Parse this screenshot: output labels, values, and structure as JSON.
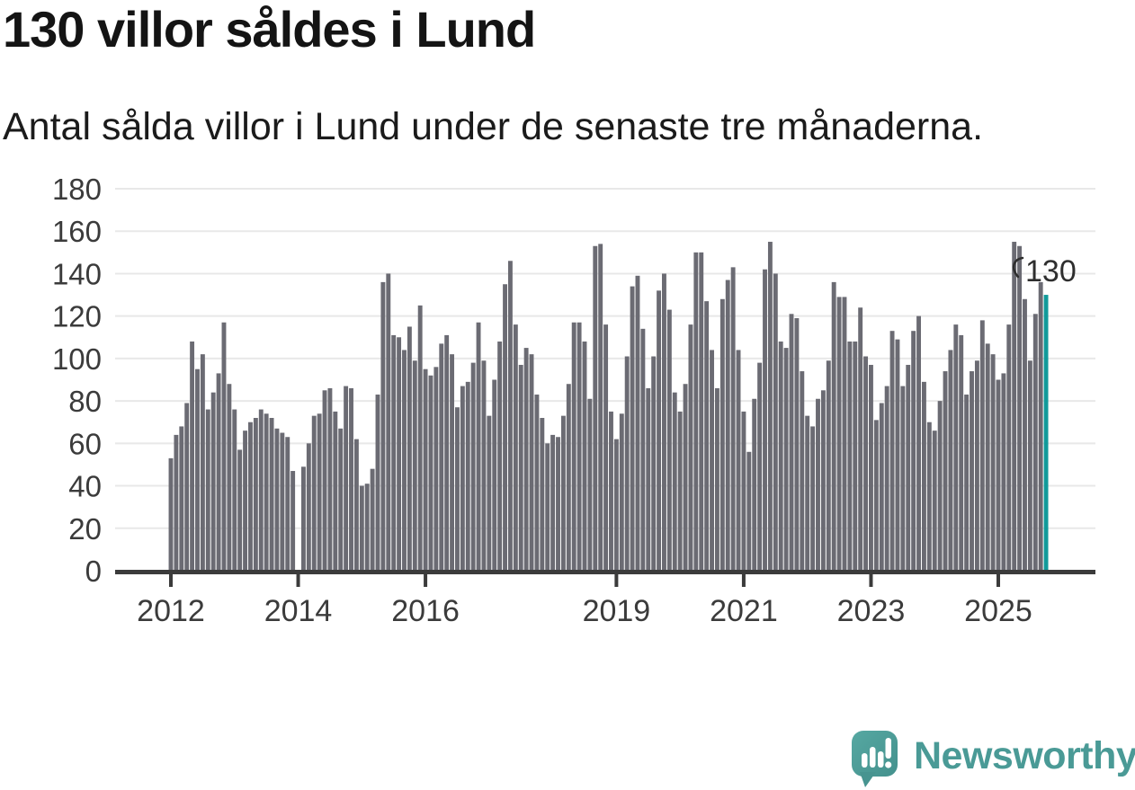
{
  "title": "130 villor såldes i Lund",
  "subtitle": "Antal sålda villor i Lund under de senaste tre månaderna.",
  "branding": {
    "name": "Newsworthy",
    "icon": "speech-bubble-bar-chart-exclamation"
  },
  "colors": {
    "bar": "#6b6b73",
    "highlight": "#119a9a",
    "grid": "#e8e8e8",
    "axis": "#3b3b3b",
    "title_text": "#141414",
    "annotation": "#2e2e2e",
    "brand": "#4a9a96"
  },
  "chart_data": {
    "type": "bar",
    "title": "130 villor såldes i Lund",
    "subtitle": "Antal sålda villor i Lund under de senaste tre månaderna.",
    "xlabel": "",
    "ylabel": "",
    "ylim": [
      0,
      180
    ],
    "y_ticks": [
      0,
      20,
      40,
      60,
      80,
      100,
      120,
      140,
      160,
      180
    ],
    "grid": true,
    "legend": "none",
    "start_year": 2012,
    "start_month": "2012-01",
    "end_month": "2025-10",
    "x_tick_years": [
      2012,
      2014,
      2016,
      2019,
      2021,
      2023,
      2025
    ],
    "x_tick_labels": [
      "2012",
      "2014",
      "2016",
      "2019",
      "2021",
      "2023",
      "2025"
    ],
    "note": "monthly bars, rolling three-month sales counts, values estimated from pixels",
    "highlight": {
      "index": 165,
      "label": "130",
      "value": 130
    },
    "series": [
      {
        "name": "Antal sålda villor",
        "values": [
          53,
          64,
          68,
          79,
          108,
          95,
          102,
          76,
          84,
          93,
          117,
          88,
          76,
          57,
          66,
          70,
          72,
          76,
          74,
          72,
          67,
          65,
          63,
          47,
          null,
          49,
          60,
          73,
          74,
          85,
          86,
          75,
          67,
          87,
          86,
          62,
          40,
          41,
          48,
          83,
          136,
          140,
          111,
          110,
          104,
          115,
          99,
          125,
          95,
          92,
          96,
          107,
          111,
          102,
          77,
          87,
          89,
          98,
          117,
          99,
          73,
          90,
          108,
          135,
          146,
          116,
          97,
          105,
          102,
          83,
          72,
          60,
          64,
          63,
          73,
          88,
          117,
          117,
          108,
          81,
          153,
          154,
          116,
          75,
          62,
          74,
          101,
          134,
          139,
          114,
          86,
          101,
          132,
          140,
          123,
          84,
          75,
          88,
          116,
          150,
          150,
          127,
          104,
          86,
          128,
          137,
          143,
          104,
          75,
          56,
          81,
          98,
          142,
          155,
          140,
          108,
          105,
          121,
          119,
          94,
          73,
          68,
          81,
          85,
          99,
          136,
          129,
          129,
          108,
          108,
          124,
          101,
          97,
          71,
          79,
          87,
          113,
          109,
          87,
          97,
          113,
          120,
          89,
          70,
          66,
          80,
          94,
          104,
          116,
          111,
          83,
          94,
          99,
          118,
          107,
          102,
          90,
          93,
          116,
          155,
          153,
          128,
          99,
          121,
          136,
          130
        ]
      }
    ]
  }
}
